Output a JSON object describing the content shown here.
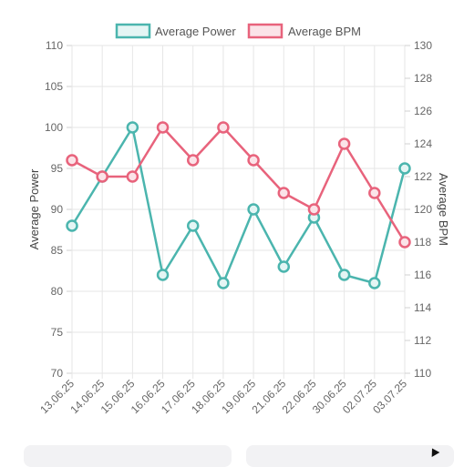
{
  "chart_data": {
    "type": "line",
    "x": [
      "13.06.25",
      "14.06.25",
      "15.06.25",
      "16.06.25",
      "17.06.25",
      "18.06.25",
      "19.06.25",
      "21.06.25",
      "22.06.25",
      "30.06.25",
      "02.07.25",
      "03.07.25"
    ],
    "series": [
      {
        "name": "Average Power",
        "axis": "left",
        "color": "#4bb5ae",
        "fill": "#e4f5f4",
        "values": [
          88,
          94,
          100,
          82,
          88,
          81,
          90,
          83,
          89,
          82,
          81,
          95
        ]
      },
      {
        "name": "Average BPM",
        "axis": "right",
        "color": "#e8637c",
        "fill": "#fbe3e8",
        "values": [
          123,
          122,
          122,
          125,
          123,
          125,
          123,
          121,
          120,
          124,
          121,
          118
        ]
      }
    ],
    "y_left": {
      "label": "Average Power",
      "range": [
        70,
        110
      ],
      "ticks": [
        70,
        75,
        80,
        85,
        90,
        95,
        100,
        105,
        110
      ]
    },
    "y_right": {
      "label": "Average BPM",
      "range": [
        110,
        130
      ],
      "ticks": [
        110,
        112,
        114,
        116,
        118,
        120,
        122,
        124,
        126,
        128,
        130
      ]
    },
    "grid": true,
    "legend": "top"
  }
}
